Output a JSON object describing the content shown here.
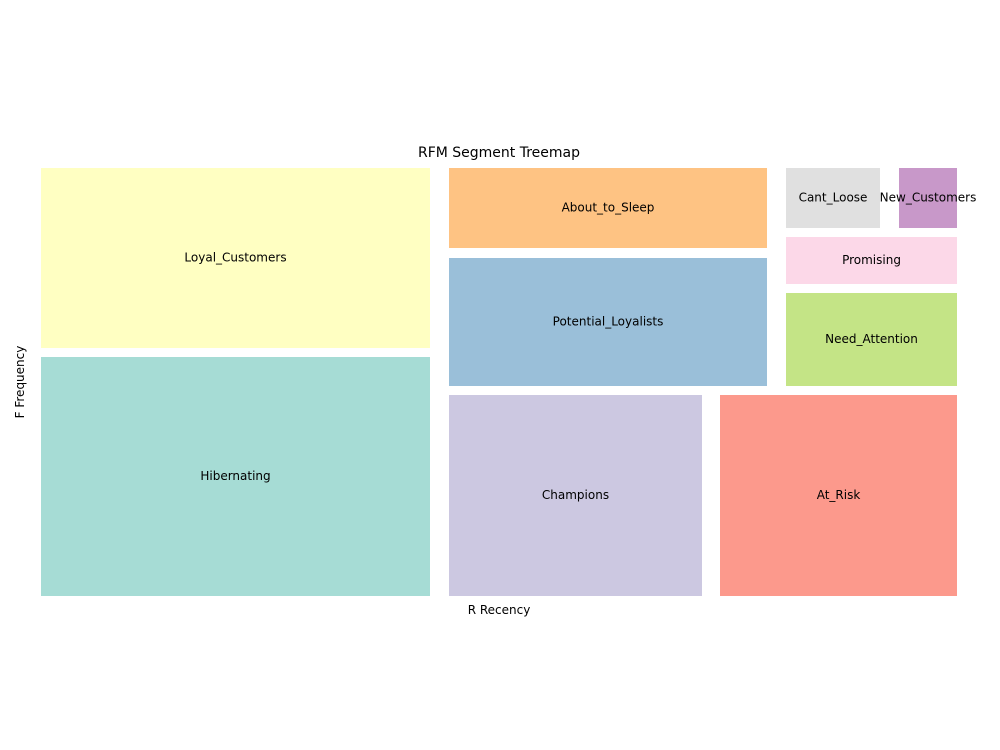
{
  "chart_data": {
    "type": "treemap",
    "title": "RFM Segment Treemap",
    "xlabel": "R Recency",
    "ylabel": "F Frequency",
    "segments": [
      {
        "name": "Hibernating",
        "value": 0.22,
        "color": "#a6dcd5"
      },
      {
        "name": "Loyal_Customers",
        "value": 0.165,
        "color": "#ffffc2"
      },
      {
        "name": "Champions",
        "value": 0.12,
        "color": "#ccc8e1"
      },
      {
        "name": "At_Risk",
        "value": 0.113,
        "color": "#fc998c"
      },
      {
        "name": "Potential_Loyalists",
        "value": 0.101,
        "color": "#9abfd9"
      },
      {
        "name": "About_to_Sleep",
        "value": 0.064,
        "color": "#fec383"
      },
      {
        "name": "Need_Attention",
        "value": 0.039,
        "color": "#c4e486"
      },
      {
        "name": "Cant_Loose",
        "value": 0.015,
        "color": "#e0e0e0"
      },
      {
        "name": "Promising",
        "value": 0.019,
        "color": "#fcd8e8"
      },
      {
        "name": "New_Customers",
        "value": 0.009,
        "color": "#c898c9"
      }
    ]
  }
}
